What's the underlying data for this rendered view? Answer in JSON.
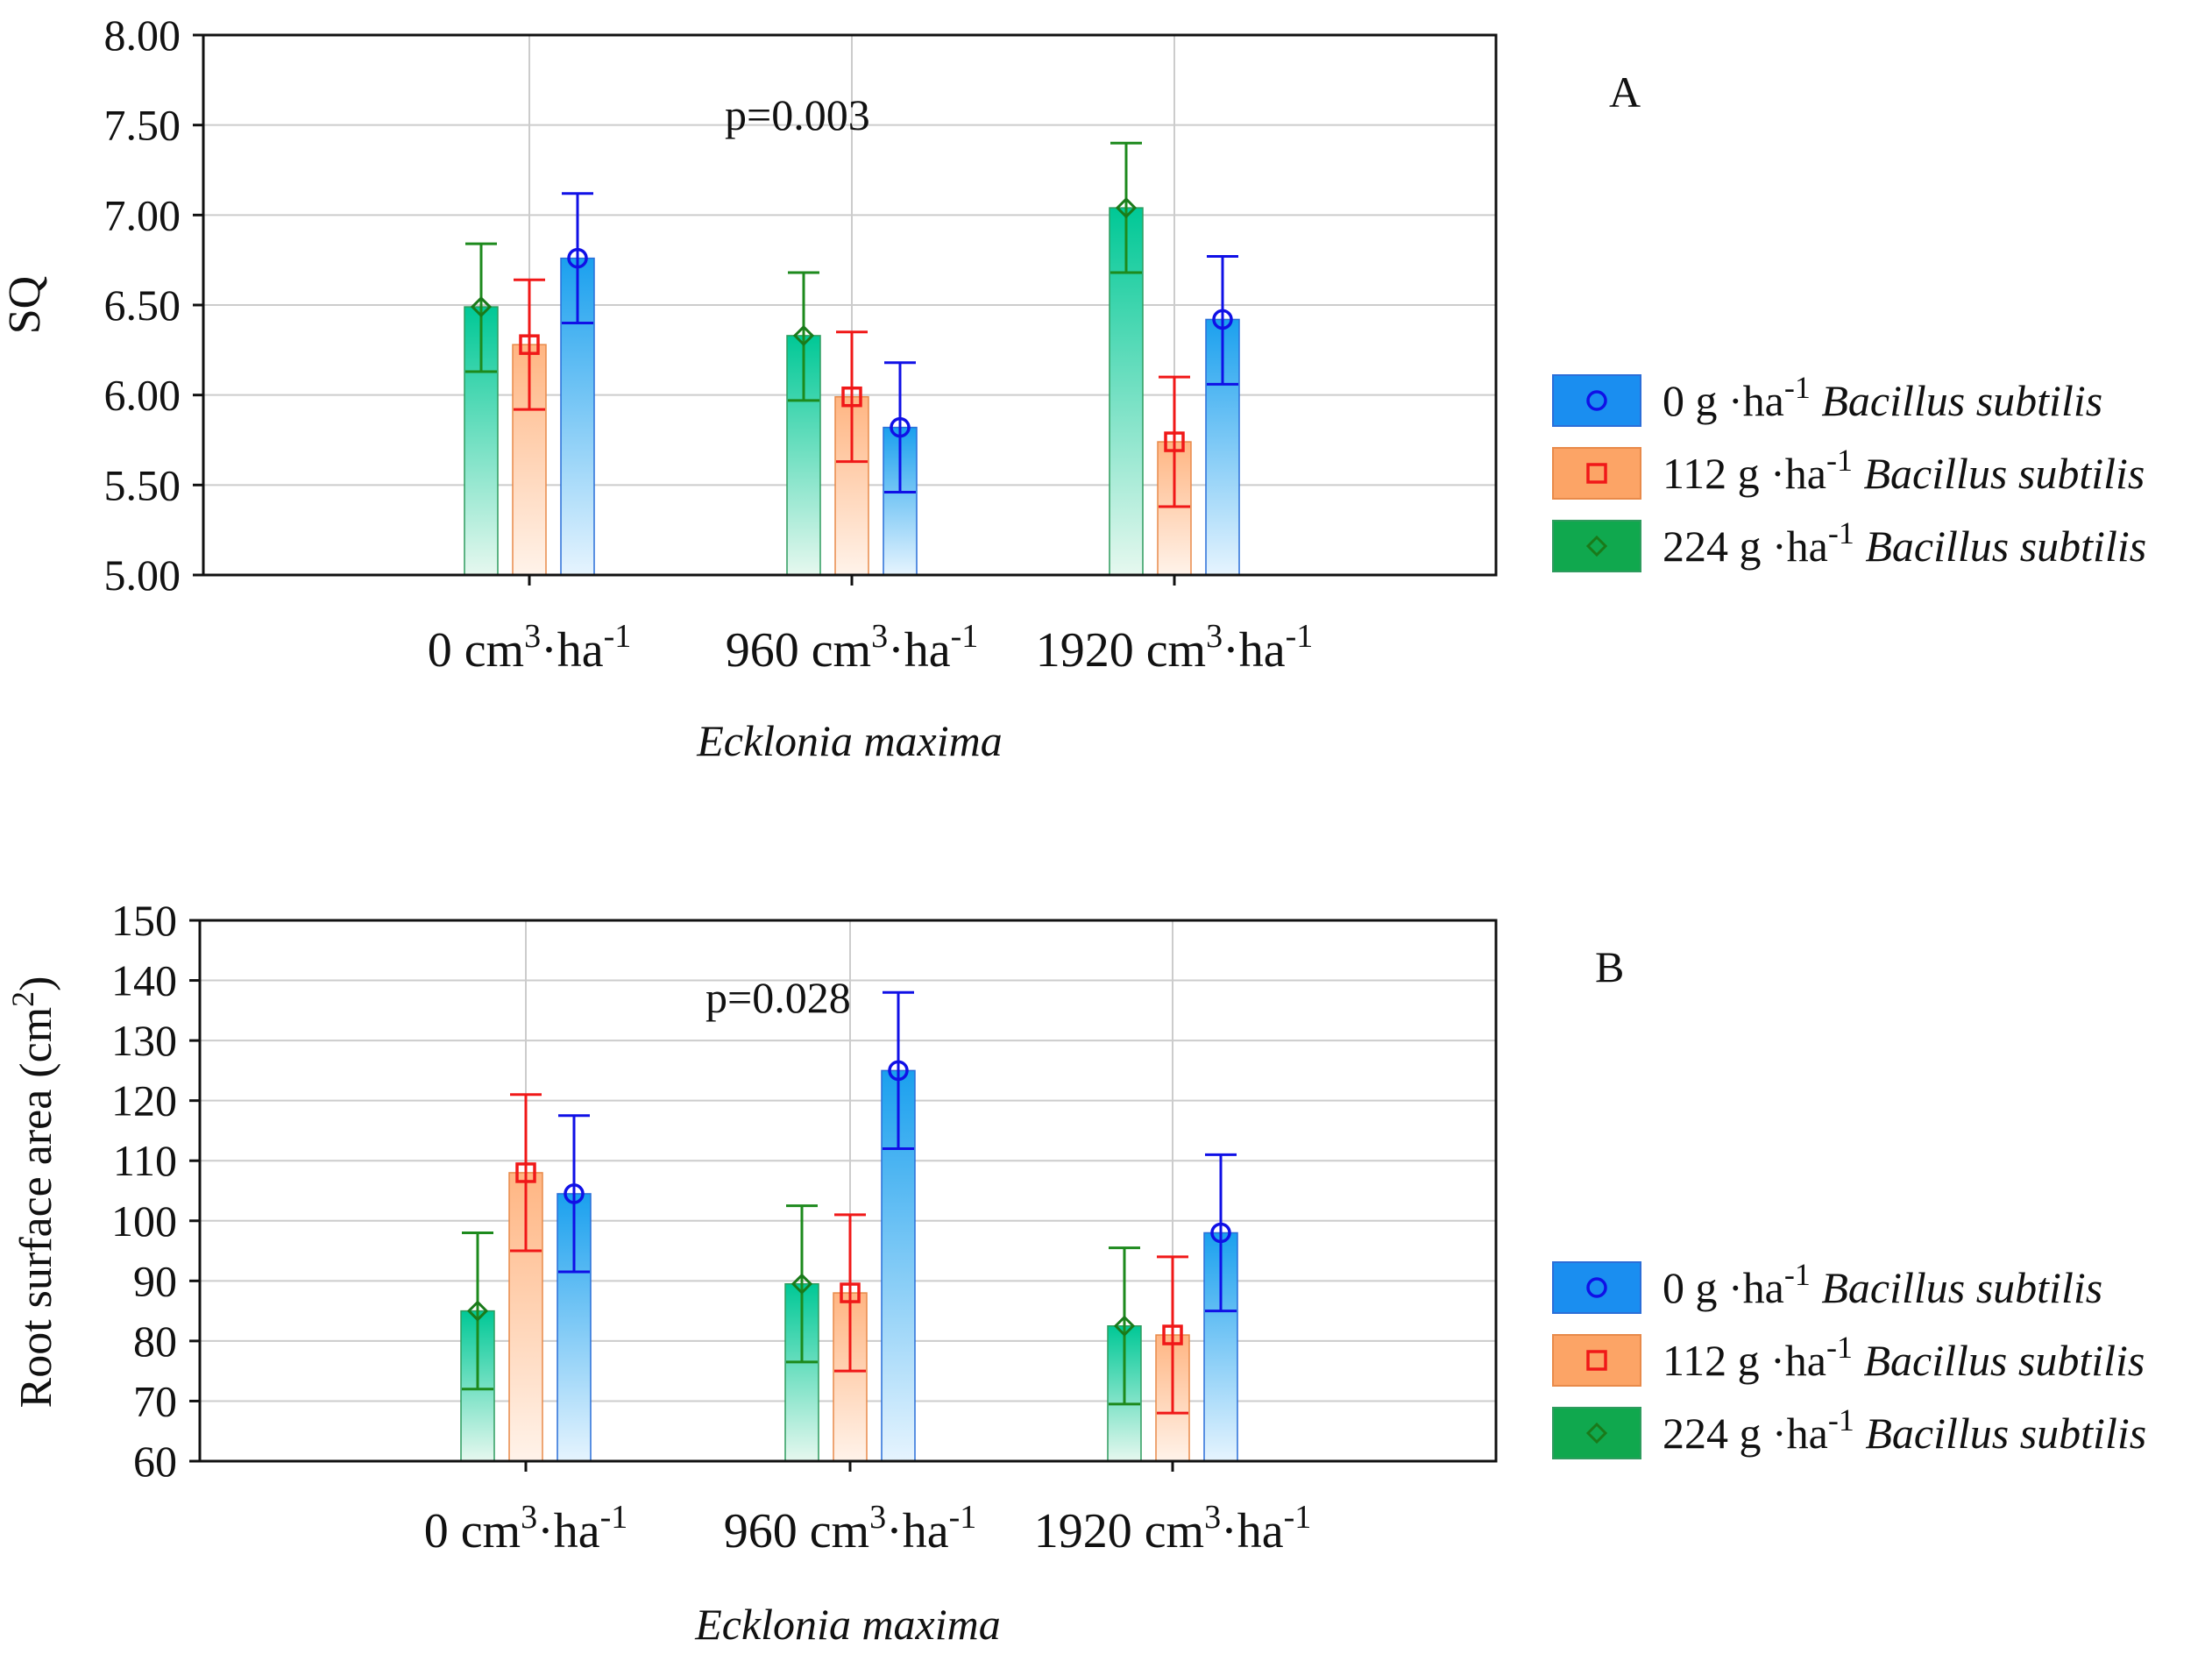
{
  "chart_data": [
    {
      "type": "bar",
      "panel_label": "A",
      "title": "",
      "ylabel": "SQ",
      "xlabel": "Ecklonia maxima",
      "annotation": "p=0.003",
      "ylim": [
        5.0,
        8.0
      ],
      "yticks": [
        "5.00",
        "5.50",
        "6.00",
        "6.50",
        "7.00",
        "7.50",
        "8.00"
      ],
      "grid": true,
      "legend_position": "right",
      "categories": [
        {
          "main": "0 cm",
          "sup": "3",
          "rest": "·ha",
          "sup2": "-1"
        },
        {
          "main": "960 cm",
          "sup": "3",
          "rest": "·ha",
          "sup2": "-1"
        },
        {
          "main": "1920 cm",
          "sup": "3",
          "rest": "·ha",
          "sup2": "-1"
        }
      ],
      "series": [
        {
          "name": "224 g ·ha-1 Bacillus subtilis",
          "color_key": "green",
          "marker": "diamond",
          "values": [
            6.49,
            6.33,
            7.04
          ],
          "lower": [
            6.13,
            5.97,
            6.68
          ],
          "upper": [
            6.84,
            6.68,
            7.4
          ]
        },
        {
          "name": "112 g ·ha-1 Bacillus subtilis",
          "color_key": "orange",
          "marker": "square",
          "values": [
            6.28,
            5.99,
            5.74
          ],
          "lower": [
            5.92,
            5.63,
            5.38
          ],
          "upper": [
            6.64,
            6.35,
            6.1
          ]
        },
        {
          "name": "0 g ·ha-1 Bacillus subtilis",
          "color_key": "blue",
          "marker": "circle",
          "values": [
            6.76,
            5.82,
            6.42
          ],
          "lower": [
            6.4,
            5.46,
            6.06
          ],
          "upper": [
            7.12,
            6.18,
            6.77
          ]
        }
      ]
    },
    {
      "type": "bar",
      "panel_label": "B",
      "title": "",
      "ylabel": "Root surface area (cm",
      "ylabel_sup": "2",
      "ylabel_end": ")",
      "xlabel": "Ecklonia maxima",
      "annotation": "p=0.028",
      "ylim": [
        60,
        150
      ],
      "yticks": [
        "60",
        "70",
        "80",
        "90",
        "100",
        "110",
        "120",
        "130",
        "140",
        "150"
      ],
      "grid": true,
      "legend_position": "right",
      "categories": [
        {
          "main": "0 cm",
          "sup": "3",
          "rest": "·ha",
          "sup2": "-1"
        },
        {
          "main": "960 cm",
          "sup": "3",
          "rest": "·ha",
          "sup2": "-1"
        },
        {
          "main": "1920 cm",
          "sup": "3",
          "rest": "·ha",
          "sup2": "-1"
        }
      ],
      "series": [
        {
          "name": "224 g ·ha-1 Bacillus subtilis",
          "color_key": "green",
          "marker": "diamond",
          "values": [
            85,
            89.5,
            82.5
          ],
          "lower": [
            72,
            76.5,
            69.5
          ],
          "upper": [
            98,
            102.5,
            95.5
          ]
        },
        {
          "name": "112 g ·ha-1 Bacillus subtilis",
          "color_key": "orange",
          "marker": "square",
          "values": [
            108,
            88,
            81
          ],
          "lower": [
            95,
            75,
            68
          ],
          "upper": [
            121,
            101,
            94
          ]
        },
        {
          "name": "0 g ·ha-1 Bacillus subtilis",
          "color_key": "blue",
          "marker": "circle",
          "values": [
            104.5,
            125,
            98
          ],
          "lower": [
            91.5,
            112,
            85
          ],
          "upper": [
            117.5,
            138,
            111
          ]
        }
      ]
    }
  ],
  "legend": [
    {
      "amount": "0 g ·ha",
      "sup": "-1",
      "species": "Bacillus subtilis",
      "color_key": "blue",
      "marker": "circle"
    },
    {
      "amount": "112 g ·ha",
      "sup": "-1",
      "species": "Bacillus subtilis",
      "color_key": "orange",
      "marker": "square"
    },
    {
      "amount": "224 g ·ha",
      "sup": "-1",
      "species": "Bacillus subtilis",
      "color_key": "green",
      "marker": "diamond"
    }
  ],
  "colors": {
    "green": {
      "top": "#00c896",
      "bottom": "#e6f8ef",
      "edge": "#2e9c5e",
      "swatch": "#10a84e",
      "err": "#1d8a1d",
      "marker": "#1a7a1a"
    },
    "orange": {
      "top": "#ffb582",
      "bottom": "#fff3ea",
      "edge": "#e88a4a",
      "swatch": "#fca466",
      "err": "#f01818",
      "marker": "#f01818"
    },
    "blue": {
      "top": "#1aa0ee",
      "bottom": "#e6f4fe",
      "edge": "#2a6ed8",
      "swatch": "#1a8ef0",
      "err": "#1010e6",
      "marker": "#1010e6"
    },
    "grid": "#cccccc",
    "axis": "#111111"
  }
}
